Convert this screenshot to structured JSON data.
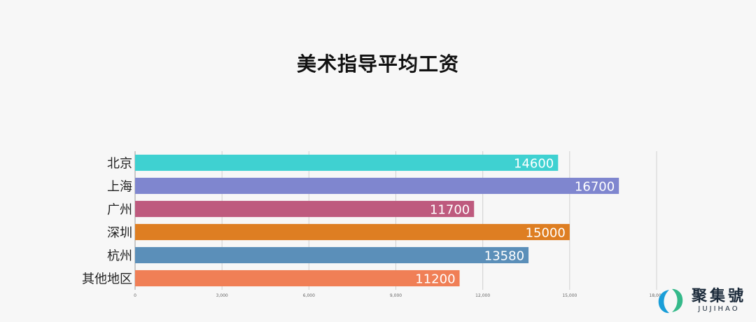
{
  "chart_data": {
    "type": "bar",
    "orientation": "horizontal",
    "title": "美术指导平均工资",
    "categories": [
      "北京",
      "上海",
      "广州",
      "深圳",
      "杭州",
      "其他地区"
    ],
    "values": [
      14600,
      16700,
      11700,
      15000,
      13580,
      11200
    ],
    "colors": [
      "#3fd1d1",
      "#7f86cf",
      "#be5a7e",
      "#de7e22",
      "#5b8fb9",
      "#f07f56"
    ],
    "xlim": [
      0,
      18000
    ],
    "xticks": [
      "0",
      "3,000",
      "6,000",
      "9,000",
      "12,000",
      "15,000",
      "18,000"
    ],
    "xtick_values": [
      0,
      3000,
      6000,
      9000,
      12000,
      15000,
      18000
    ],
    "grid": true,
    "xlabel": "",
    "ylabel": ""
  },
  "watermark": {
    "cn": "聚集號",
    "en": "JUJIHAO",
    "logo_colors": [
      "#1a9ed8",
      "#35b98a"
    ]
  }
}
